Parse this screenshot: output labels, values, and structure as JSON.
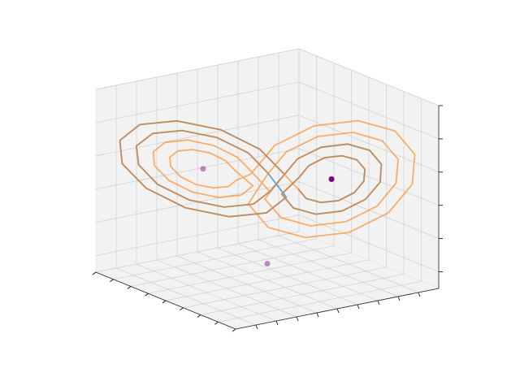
{
  "chart_data": {
    "type": "line3d",
    "xlim": [
      -20,
      20
    ],
    "ylim": [
      -25,
      25
    ],
    "zlim": [
      -5,
      50
    ],
    "xticks": [
      -20,
      -15,
      -10,
      -5,
      0,
      5,
      10,
      15,
      20
    ],
    "yticks": [
      -20,
      -15,
      -10,
      -5,
      0,
      5,
      10,
      15,
      20
    ],
    "zticks": [
      0,
      10,
      20,
      30,
      40,
      50
    ],
    "grid": true,
    "series": [
      {
        "color": "#1f77b4",
        "x": [
          1.5,
          0.2,
          -3.5,
          -8.5,
          -13.5,
          -17.2,
          -18.5,
          -17.2,
          -13.5,
          -8.5,
          -3.5,
          0.2,
          -0.5,
          -1.5,
          -4.5,
          -8.5,
          -12.5,
          -15.5,
          -16.5,
          -15.5,
          -12.5,
          -8.5,
          -4.5,
          -1.5,
          2.5,
          3.3,
          5.5,
          8.5,
          11.5,
          13.7,
          14.5,
          13.7,
          11.5,
          8.5,
          5.5,
          3.3,
          4.5,
          5,
          6.5,
          8.5,
          10.5,
          12,
          12.5,
          12,
          10.5,
          8.5,
          6.5,
          5
        ],
        "y": [
          2.8,
          -2,
          -8.5,
          -15,
          -19.8,
          -21.5,
          -19.8,
          -15,
          -8.5,
          -2,
          2.8,
          4.5,
          0.5,
          -3.3,
          -8.5,
          -13.7,
          -17.5,
          -18.9,
          -17.5,
          -13.7,
          -8.5,
          -3.3,
          0.5,
          1.9,
          1.7,
          4.6,
          8.5,
          12.4,
          15.3,
          16.3,
          15.3,
          12.4,
          8.5,
          4.6,
          1.7,
          0.7,
          4,
          5.9,
          8.5,
          11.1,
          13,
          13.7,
          13,
          11.1,
          8.5,
          5.9,
          4,
          3.3
        ],
        "z": [
          27,
          35,
          40.9,
          43,
          40.9,
          35,
          27,
          19,
          13.1,
          11,
          13.1,
          19,
          27,
          33.4,
          38.1,
          39.8,
          38.1,
          33.4,
          27,
          20.6,
          15.9,
          14.2,
          15.9,
          20.6,
          27,
          31.8,
          35.3,
          36.6,
          35.3,
          31.8,
          27,
          22.2,
          18.7,
          17.4,
          18.7,
          22.2,
          27,
          30.2,
          32.6,
          33.4,
          32.6,
          30.2,
          27,
          23.8,
          21.4,
          20.6,
          21.4,
          23.8
        ]
      },
      {
        "color": "#ff7f0e",
        "x": [
          -0.5,
          -1.5,
          -4.5,
          -8.5,
          -12.5,
          -15.5,
          -16.5,
          -15.5,
          -12.5,
          -8.5,
          -4.5,
          -1.5,
          -2.5,
          -3.3,
          -5.5,
          -8.5,
          -11.5,
          -13.7,
          -14.5,
          -13.7,
          -11.5,
          -8.5,
          -5.5,
          -3.3,
          -4.5,
          -5,
          -6.5,
          -8.5,
          -10.5,
          -12,
          -12.5,
          -12,
          -10.5,
          -8.5,
          -6.5,
          -5,
          -1.5,
          -0.2,
          3.5,
          8.5,
          13.5,
          17.2,
          18.5,
          17.2,
          13.5,
          8.5,
          3.5,
          -0.2,
          0.5,
          1.5,
          4.5,
          8.5,
          12.5,
          15.5,
          16.5,
          15.5,
          12.5,
          8.5,
          4.5,
          1.5,
          2.5,
          3.3,
          5.5,
          8.5,
          11.5,
          13.7,
          14.5,
          13.7,
          11.5,
          8.5,
          5.5,
          3.3,
          4.5,
          5,
          6.5,
          8.5,
          10.5,
          12,
          12.5,
          12,
          10.5,
          8.5,
          6.5,
          5,
          1.5,
          0.2,
          -3.5,
          -8.5,
          -13.5,
          -17.2,
          -18.5,
          -17.2,
          -13.5,
          -8.5,
          -3.5,
          0.2
        ],
        "y": [
          0.5,
          -3.3,
          -8.5,
          -13.7,
          -17.5,
          -18.9,
          -17.5,
          -13.7,
          -8.5,
          -3.3,
          0.5,
          1.9,
          -1.7,
          -4.6,
          -8.5,
          -12.4,
          -15.3,
          -16.3,
          -15.3,
          -12.4,
          -8.5,
          -4.6,
          -1.7,
          -0.7,
          -4,
          -5.9,
          -8.5,
          -11.1,
          -13,
          -13.7,
          -13,
          -11.1,
          -8.5,
          -5.9,
          -4,
          -3.3,
          -2.8,
          2,
          8.5,
          15,
          19.8,
          21.5,
          19.8,
          15,
          8.5,
          2,
          -2.8,
          -4.5,
          -0.5,
          3.3,
          8.5,
          13.7,
          17.5,
          18.9,
          17.5,
          13.7,
          8.5,
          3.3,
          -0.5,
          -1.9,
          1.7,
          4.6,
          8.5,
          12.4,
          15.3,
          16.3,
          15.3,
          12.4,
          8.5,
          4.6,
          1.7,
          0.7,
          4,
          5.9,
          8.5,
          11.1,
          13,
          13.7,
          13,
          11.1,
          8.5,
          5.9,
          4,
          3.3,
          2.8,
          -2,
          -8.5,
          -15,
          -19.8,
          -21.5,
          -19.8,
          -15,
          -8.5,
          -2,
          2.8,
          4.5
        ],
        "z": [
          27,
          33.4,
          38.1,
          39.8,
          38.1,
          33.4,
          27,
          20.6,
          15.9,
          14.2,
          15.9,
          20.6,
          27,
          31.8,
          35.3,
          36.6,
          35.3,
          31.8,
          27,
          22.2,
          18.7,
          17.4,
          18.7,
          22.2,
          27,
          30.2,
          32.6,
          33.4,
          32.6,
          30.2,
          27,
          23.8,
          21.4,
          20.6,
          21.4,
          23.8,
          27,
          35,
          40.9,
          43,
          40.9,
          35,
          27,
          19,
          13.1,
          11,
          13.1,
          19,
          27,
          33.4,
          38.1,
          39.8,
          38.1,
          33.4,
          27,
          20.6,
          15.9,
          14.2,
          15.9,
          20.6,
          27,
          31.8,
          35.3,
          36.6,
          35.3,
          31.8,
          27,
          22.2,
          18.7,
          17.4,
          18.7,
          22.2,
          27,
          30.2,
          32.6,
          33.4,
          32.6,
          30.2,
          27,
          23.8,
          21.4,
          20.6,
          21.4,
          23.8,
          27,
          35,
          40.9,
          43,
          40.9,
          35,
          27,
          19,
          13.1,
          11,
          13.1,
          19
        ]
      }
    ],
    "points": {
      "color": "purple",
      "x": [
        -8.5,
        8.5,
        0
      ],
      "y": [
        -8.5,
        8.5,
        0
      ],
      "z": [
        27,
        27,
        0
      ]
    }
  }
}
